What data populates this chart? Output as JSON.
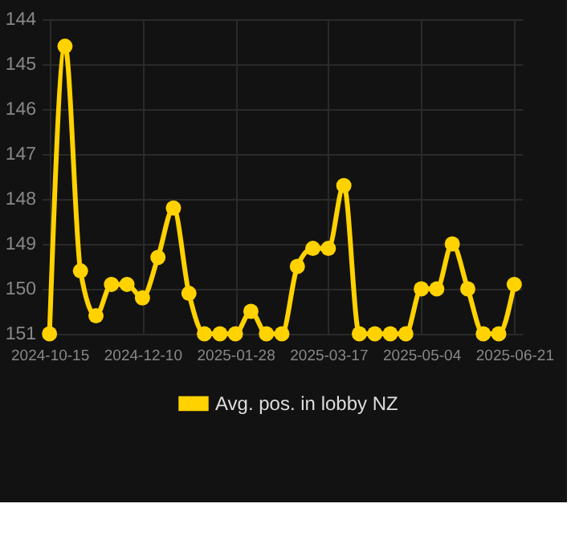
{
  "chart_data": {
    "type": "line",
    "categories": [
      "2024-10-15",
      null,
      null,
      null,
      null,
      null,
      "2024-12-10",
      null,
      null,
      null,
      null,
      null,
      "2025-01-28",
      null,
      null,
      null,
      null,
      null,
      "2025-03-17",
      null,
      null,
      null,
      null,
      null,
      "2025-05-04",
      null,
      null,
      null,
      null,
      null,
      "2025-06-21"
    ],
    "series": [
      {
        "name": "Avg. pos. in lobby NZ",
        "color": "#ffd200",
        "values": [
          151,
          144.6,
          149.6,
          150.6,
          149.9,
          149.9,
          150.2,
          149.3,
          148.2,
          150.1,
          151,
          151,
          151,
          150.5,
          151,
          151,
          149.5,
          149.1,
          149.1,
          147.7,
          151,
          151,
          151,
          151,
          150.0,
          150.0,
          149.0,
          150.0,
          151,
          151,
          149.9
        ]
      }
    ],
    "ylim": [
      151,
      144
    ],
    "yticks": [
      144,
      145,
      146,
      147,
      148,
      149,
      150,
      151
    ],
    "grid": true,
    "legend": "bottom",
    "marker": "circle",
    "line_style": "solid"
  }
}
